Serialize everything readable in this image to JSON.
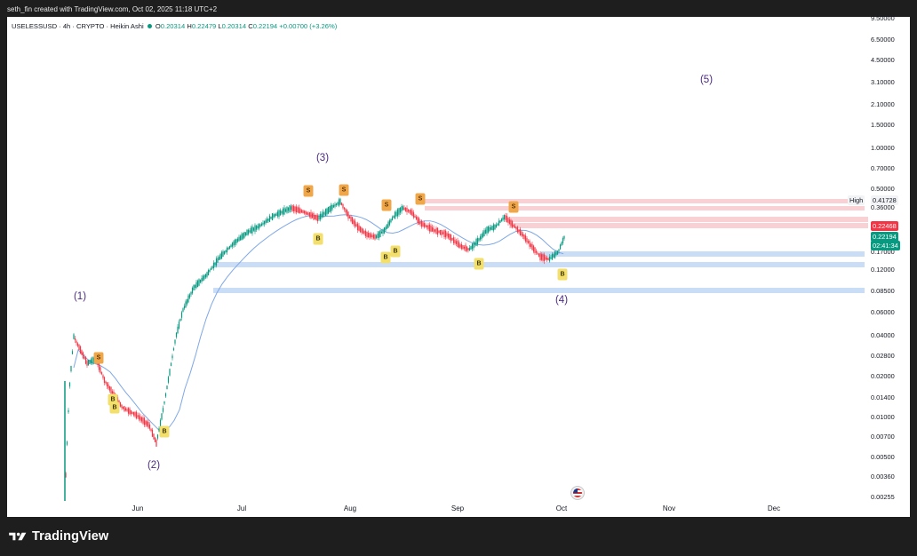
{
  "caption": "seth_fin created with TradingView.com, Oct 02, 2025 11:18 UTC+2",
  "legend": {
    "symbol": "USELESSUSD · 4h · CRYPTO · Heikin Ashi",
    "o_label": "O",
    "o": "0.20314",
    "h_label": "H",
    "h": "0.22479",
    "l_label": "L",
    "l": "0.20314",
    "c_label": "C",
    "c": "0.22194",
    "change": "+0.00700 (+3.26%)"
  },
  "y_axis": [
    "9.50000",
    "6.50000",
    "4.50000",
    "3.10000",
    "2.10000",
    "1.50000",
    "1.00000",
    "0.70000",
    "0.50000",
    "0.36000",
    "0.17000",
    "0.12000",
    "0.08500",
    "0.06000",
    "0.04000",
    "0.02800",
    "0.02000",
    "0.01400",
    "0.01000",
    "0.00700",
    "0.00500",
    "0.00360",
    "0.00255"
  ],
  "x_axis": [
    "Jun",
    "Jul",
    "Aug",
    "Sep",
    "Oct",
    "Nov",
    "Dec"
  ],
  "price_tags": {
    "high_label": "High",
    "high": "0.41728",
    "red": "0.22468",
    "last": "0.22194",
    "countdown": "02:41:34"
  },
  "waves": [
    "(1)",
    "(2)",
    "(3)",
    "(4)",
    "(5)"
  ],
  "markers": {
    "sell": "S",
    "buy": "B"
  },
  "footer": {
    "brand": "TradingView"
  },
  "colors": {
    "up": "#089981",
    "down": "#f23645",
    "wave_label": "#4b2a82",
    "sell_marker": "#f0a74a",
    "buy_marker": "#f3df6b",
    "support_zone": "#bcd4f5",
    "resistance_zone": "#f7c6c9"
  },
  "icons": [
    "tradingview-logo-icon",
    "us-flag-news-icon"
  ]
}
